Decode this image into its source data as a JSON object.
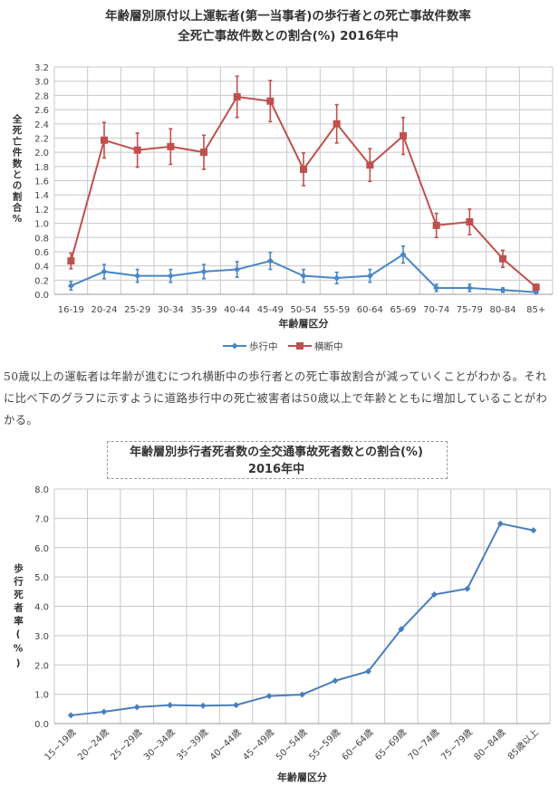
{
  "chart_data": [
    {
      "type": "line",
      "title": [
        "年齢層別原付以上運転者(第一当事者)の歩行者との死亡事故件数率",
        "全死亡事故件数との割合(%) 2016年中"
      ],
      "xlabel": "年齢層区分",
      "ylabel": "全死亡件数との割合%",
      "ylim": [
        0,
        3.2
      ],
      "yticks": [
        "0.0",
        "0.2",
        "0.4",
        "0.6",
        "0.8",
        "1.0",
        "1.2",
        "1.4",
        "1.6",
        "1.8",
        "2.0",
        "2.2",
        "2.4",
        "2.6",
        "2.8",
        "3.0",
        "3.2"
      ],
      "categories": [
        "16-19",
        "20-24",
        "25-29",
        "30-34",
        "35-39",
        "40-44",
        "45-49",
        "50-54",
        "55-59",
        "60-64",
        "65-69",
        "70-74",
        "75-79",
        "80-84",
        "85+"
      ],
      "legend_position": "bottom",
      "grid": true,
      "series": [
        {
          "name": "歩行中",
          "color": "#4a86c5",
          "marker": "diamond",
          "values": [
            0.12,
            0.32,
            0.26,
            0.26,
            0.32,
            0.35,
            0.47,
            0.26,
            0.23,
            0.26,
            0.56,
            0.09,
            0.09,
            0.06,
            0.03
          ],
          "error": [
            0.06,
            0.1,
            0.09,
            0.09,
            0.1,
            0.11,
            0.12,
            0.09,
            0.08,
            0.09,
            0.12,
            0.05,
            0.05,
            0.03,
            0.01
          ]
        },
        {
          "name": "横断中",
          "color": "#c0504d",
          "marker": "square",
          "values": [
            0.47,
            2.17,
            2.03,
            2.08,
            2.0,
            2.78,
            2.72,
            1.76,
            2.4,
            1.82,
            2.23,
            0.97,
            1.02,
            0.5,
            0.1
          ],
          "error": [
            0.11,
            0.25,
            0.24,
            0.25,
            0.24,
            0.29,
            0.29,
            0.23,
            0.27,
            0.23,
            0.26,
            0.17,
            0.18,
            0.12,
            0.04
          ]
        }
      ]
    },
    {
      "type": "line",
      "title": [
        "年齢層別歩行者死者数の全交通事故死者数との割合(%)",
        "2016年中"
      ],
      "xlabel": "年齢層区分",
      "ylabel": "歩行死者率(%)",
      "ylim": [
        0,
        8
      ],
      "yticks": [
        "0.0",
        "1.0",
        "2.0",
        "3.0",
        "4.0",
        "5.0",
        "6.0",
        "7.0",
        "8.0"
      ],
      "categories": [
        "15~19歳",
        "20~24歳",
        "25~29歳",
        "30~34歳",
        "35~39歳",
        "40~44歳",
        "45~49歳",
        "50~54歳",
        "55~59歳",
        "60~64歳",
        "65~69歳",
        "70~74歳",
        "75~79歳",
        "80~84歳",
        "85歳以上"
      ],
      "grid": true,
      "series": [
        {
          "name": "歩行死者率",
          "color": "#4a7ebb",
          "marker": "diamond",
          "values": [
            0.28,
            0.4,
            0.56,
            0.63,
            0.61,
            0.63,
            0.94,
            0.99,
            1.46,
            1.78,
            3.22,
            4.4,
            4.6,
            6.82,
            6.59
          ]
        }
      ]
    }
  ],
  "paragraph": "50歳以上の運転者は年齢が進むにつれ横断中の歩行者との死亡事故割合が減っていくことがわかる。それに比べ下のグラフに示すように道路歩行中の死亡被害者は50歳以上で年齢とともに増加していることがわかる。"
}
